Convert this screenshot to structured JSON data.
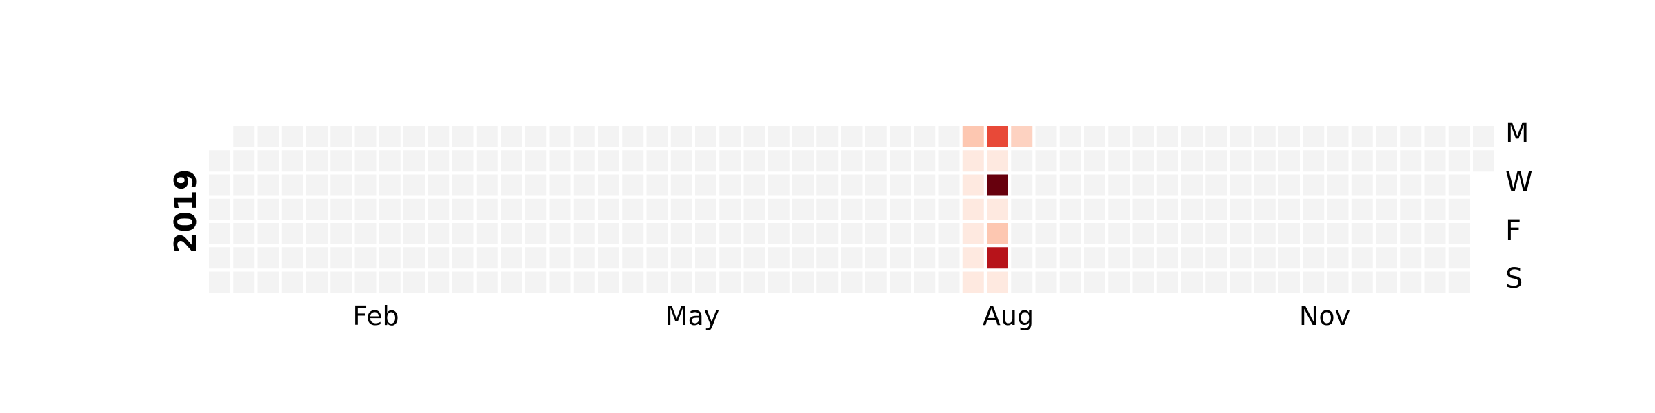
{
  "chart_data": {
    "type": "heatmap",
    "year_label": "2019",
    "month_labels": [
      "Feb",
      "May",
      "Aug",
      "Nov"
    ],
    "day_labels": [
      "M",
      "W",
      "F",
      "S"
    ],
    "empty_color": "#f3f3f3",
    "colorscale": [
      "#fff5f0",
      "#fcbba1",
      "#fb6a4a",
      "#cb181d",
      "#67000d"
    ],
    "active_cells": [
      {
        "date": "2019-08-05",
        "value": 0.2
      },
      {
        "date": "2019-08-06",
        "value": 0.05
      },
      {
        "date": "2019-08-07",
        "value": 0.05
      },
      {
        "date": "2019-08-08",
        "value": 0.05
      },
      {
        "date": "2019-08-09",
        "value": 0.05
      },
      {
        "date": "2019-08-10",
        "value": 0.05
      },
      {
        "date": "2019-08-11",
        "value": 0.05
      },
      {
        "date": "2019-08-12",
        "value": 0.6
      },
      {
        "date": "2019-08-13",
        "value": 0.05
      },
      {
        "date": "2019-08-14",
        "value": 1.0
      },
      {
        "date": "2019-08-15",
        "value": 0.05
      },
      {
        "date": "2019-08-16",
        "value": 0.2
      },
      {
        "date": "2019-08-17",
        "value": 0.8
      },
      {
        "date": "2019-08-18",
        "value": 0.05
      },
      {
        "date": "2019-08-19",
        "value": 0.15
      }
    ]
  }
}
